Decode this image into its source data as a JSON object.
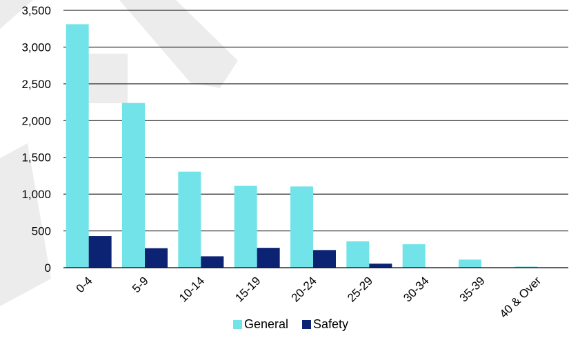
{
  "chart_data": {
    "type": "bar",
    "categories": [
      "0-4",
      "5-9",
      "10-14",
      "15-19",
      "20-24",
      "25-29",
      "30-34",
      "35-39",
      "40 & Over"
    ],
    "series": [
      {
        "name": "General",
        "values": [
          3310,
          2240,
          1305,
          1115,
          1105,
          360,
          320,
          110,
          15
        ],
        "color": "#72E3E8"
      },
      {
        "name": "Safety",
        "values": [
          430,
          265,
          155,
          270,
          240,
          55,
          0,
          0,
          0
        ],
        "color": "#0B2372"
      }
    ],
    "ylim": [
      0,
      3500
    ],
    "yticks": [
      0,
      500,
      1000,
      1500,
      2000,
      2500,
      3000,
      3500
    ],
    "ytick_labels": [
      "0",
      "500",
      "1,000",
      "1,500",
      "2,000",
      "2,500",
      "3,000",
      "3,500"
    ],
    "grid": true,
    "legend_position": "bottom",
    "watermark_color": "#C8C8C8"
  }
}
